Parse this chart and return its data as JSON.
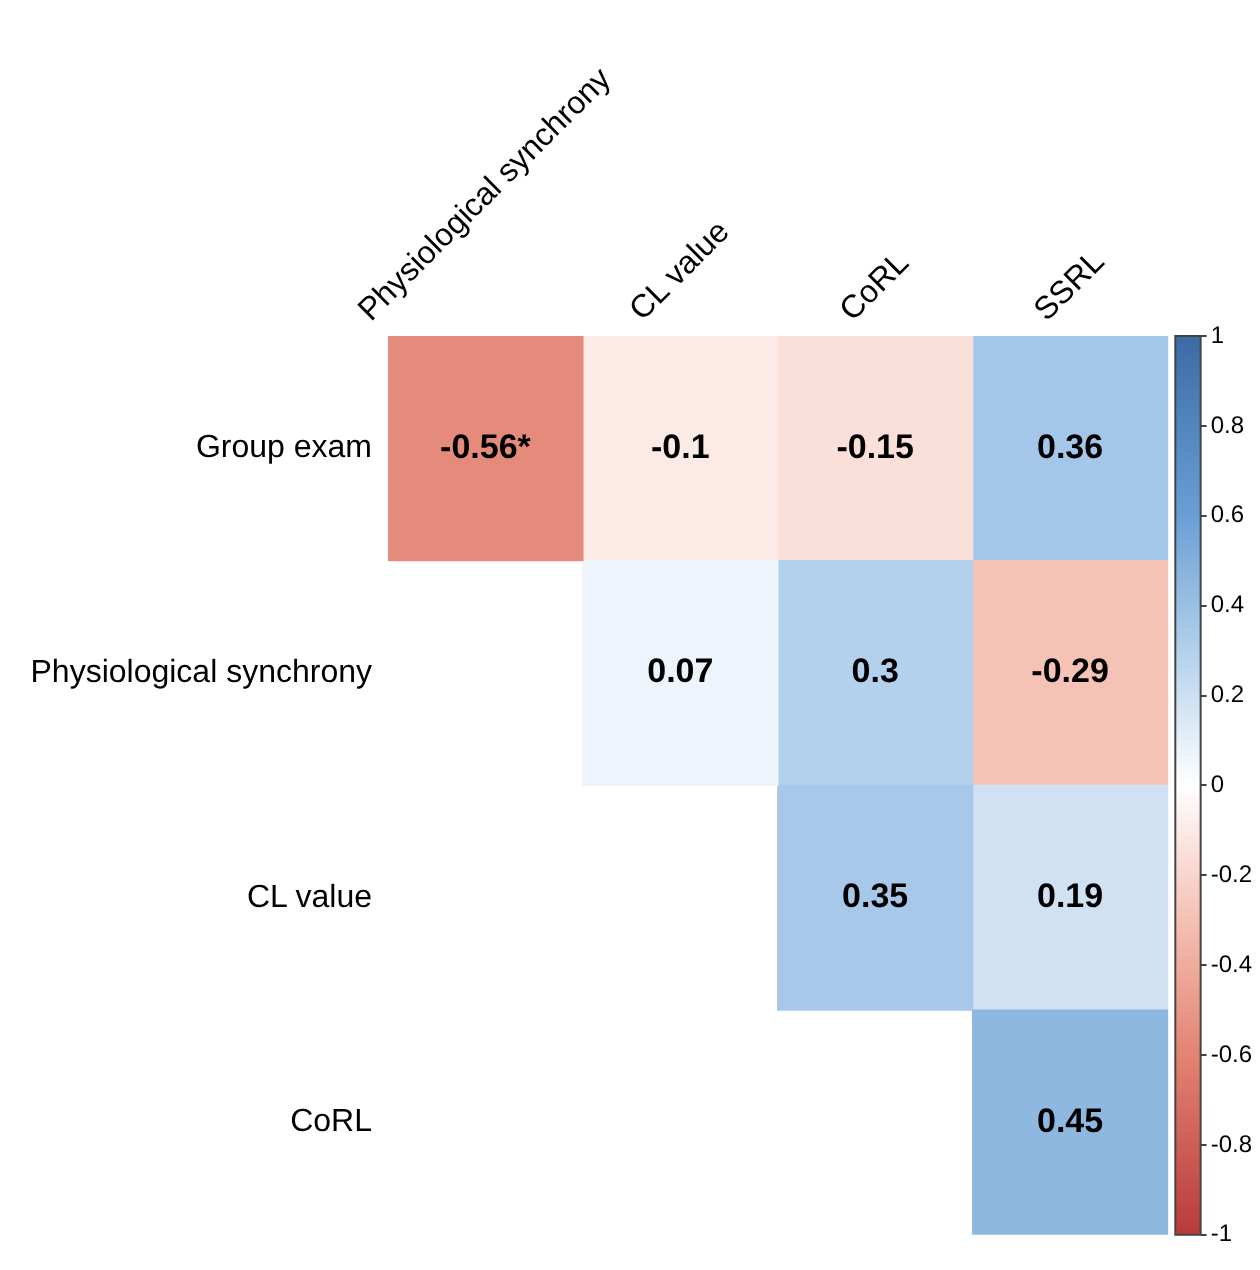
{
  "chart_data": {
    "type": "heatmap",
    "categories": [
      "Physiological synchrony",
      "CL value",
      "CoRL",
      "SSRL"
    ],
    "y_categories": [
      "Group exam",
      "Physiological synchrony",
      "CL value",
      "CoRL"
    ],
    "cells": [
      [
        -0.56,
        -0.1,
        -0.15,
        0.36
      ],
      [
        null,
        0.07,
        0.3,
        -0.29
      ],
      [
        null,
        null,
        0.35,
        0.19
      ],
      [
        null,
        null,
        null,
        0.45
      ]
    ],
    "cell_labels": [
      [
        "-0.56*",
        "-0.1",
        "-0.15",
        "0.36"
      ],
      [
        null,
        "0.07",
        "0.3",
        "-0.29"
      ],
      [
        null,
        null,
        "0.35",
        "0.19"
      ],
      [
        null,
        null,
        null,
        "0.45"
      ]
    ],
    "clim": [
      -1,
      1
    ],
    "cticks": [
      1,
      0.8,
      0.6,
      0.4,
      0.2,
      0,
      -0.2,
      -0.4,
      -0.6,
      -0.8,
      -1
    ]
  }
}
